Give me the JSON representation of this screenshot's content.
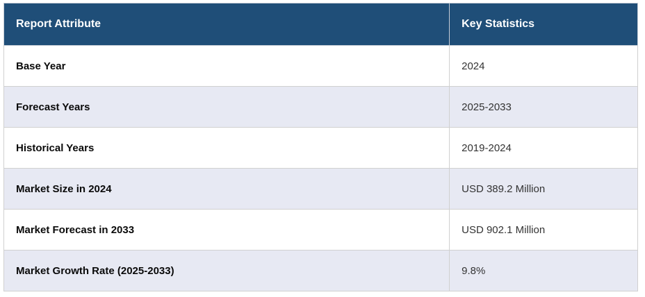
{
  "chart_data": {
    "type": "table",
    "columns": [
      "Report Attribute",
      "Key Statistics"
    ],
    "rows": [
      {
        "attribute": "Base Year",
        "value": "2024"
      },
      {
        "attribute": "Forecast Years",
        "value": "2025-2033"
      },
      {
        "attribute": "Historical Years",
        "value": "2019-2024"
      },
      {
        "attribute": "Market Size in 2024",
        "value": "USD 389.2 Million"
      },
      {
        "attribute": "Market Forecast in 2033",
        "value": "USD 902.1 Million"
      },
      {
        "attribute": "Market Growth Rate (2025-2033)",
        "value": "9.8%"
      }
    ]
  },
  "colors": {
    "header_bg": "#1f4e78",
    "header_text": "#ffffff",
    "row_bg": "#ffffff",
    "row_alt_bg": "#e7e9f3",
    "border": "#d0d0d0"
  }
}
